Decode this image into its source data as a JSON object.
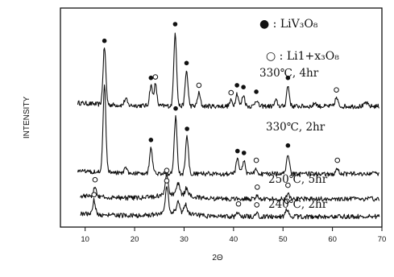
{
  "chart_data": {
    "type": "line",
    "xlabel": "2Θ",
    "ylabel": "INTENSITY",
    "xlim": [
      5,
      70
    ],
    "x_ticks": [
      "10",
      "20",
      "30",
      "40",
      "50",
      "60",
      "70"
    ],
    "grid": false,
    "legend": [
      {
        "marker": "filled-circle",
        "text": "LiV3O8",
        "display": "● : LiV₃O₈"
      },
      {
        "marker": "open-circle",
        "text": "Li1+xV3O8",
        "display": "○ : Li1+x₃O₈"
      }
    ],
    "series": [
      {
        "name": "330℃, 4hr",
        "peaks": [
          {
            "x": 13.9,
            "h": 0.62,
            "type": "filled"
          },
          {
            "x": 18.2,
            "h": 0.07
          },
          {
            "x": 23.3,
            "h": 0.22,
            "type": "filled"
          },
          {
            "x": 24.2,
            "h": 0.23,
            "type": "open"
          },
          {
            "x": 28.2,
            "h": 0.8,
            "type": "filled"
          },
          {
            "x": 30.5,
            "h": 0.38,
            "type": "filled"
          },
          {
            "x": 33.0,
            "h": 0.14,
            "type": "open"
          },
          {
            "x": 39.5,
            "h": 0.06,
            "type": "open"
          },
          {
            "x": 40.7,
            "h": 0.14,
            "type": "filled"
          },
          {
            "x": 42.0,
            "h": 0.12,
            "type": "filled"
          },
          {
            "x": 44.6,
            "h": 0.07,
            "type": "filled"
          },
          {
            "x": 48.6,
            "h": 0.06
          },
          {
            "x": 51.0,
            "h": 0.22,
            "type": "filled"
          },
          {
            "x": 56.5,
            "h": 0.04
          },
          {
            "x": 60.8,
            "h": 0.09,
            "type": "open"
          },
          {
            "x": 66.8,
            "h": 0.04
          }
        ]
      },
      {
        "name": "330℃, 2hr",
        "peaks": [
          {
            "x": 13.9,
            "h": 0.95
          },
          {
            "x": 18.2,
            "h": 0.05
          },
          {
            "x": 23.3,
            "h": 0.28,
            "type": "filled"
          },
          {
            "x": 28.3,
            "h": 0.62,
            "type": "filled"
          },
          {
            "x": 30.6,
            "h": 0.4,
            "type": "filled"
          },
          {
            "x": 40.8,
            "h": 0.16,
            "type": "filled"
          },
          {
            "x": 42.1,
            "h": 0.14,
            "type": "filled"
          },
          {
            "x": 44.6,
            "h": 0.06,
            "type": "open"
          },
          {
            "x": 51.0,
            "h": 0.22,
            "type": "filled"
          },
          {
            "x": 61.0,
            "h": 0.06,
            "type": "open"
          }
        ]
      },
      {
        "name": "250℃, 5hr",
        "peaks": [
          {
            "x": 12.0,
            "h": 0.12,
            "type": "open"
          },
          {
            "x": 26.5,
            "h": 0.22,
            "type": "open"
          },
          {
            "x": 28.8,
            "h": 0.12
          },
          {
            "x": 30.5,
            "h": 0.08
          },
          {
            "x": 44.8,
            "h": 0.04,
            "type": "open"
          },
          {
            "x": 51.0,
            "h": 0.06,
            "type": "open"
          }
        ]
      },
      {
        "name": "240℃, 2hr",
        "peaks": [
          {
            "x": 11.8,
            "h": 0.15,
            "type": "open"
          },
          {
            "x": 26.5,
            "h": 0.3,
            "type": "open"
          },
          {
            "x": 28.8,
            "h": 0.12
          },
          {
            "x": 30.3,
            "h": 0.09
          },
          {
            "x": 41.0,
            "h": 0.05,
            "type": "open"
          },
          {
            "x": 44.7,
            "h": 0.04,
            "type": "open"
          },
          {
            "x": 50.8,
            "h": 0.08,
            "type": "open"
          }
        ]
      }
    ]
  }
}
